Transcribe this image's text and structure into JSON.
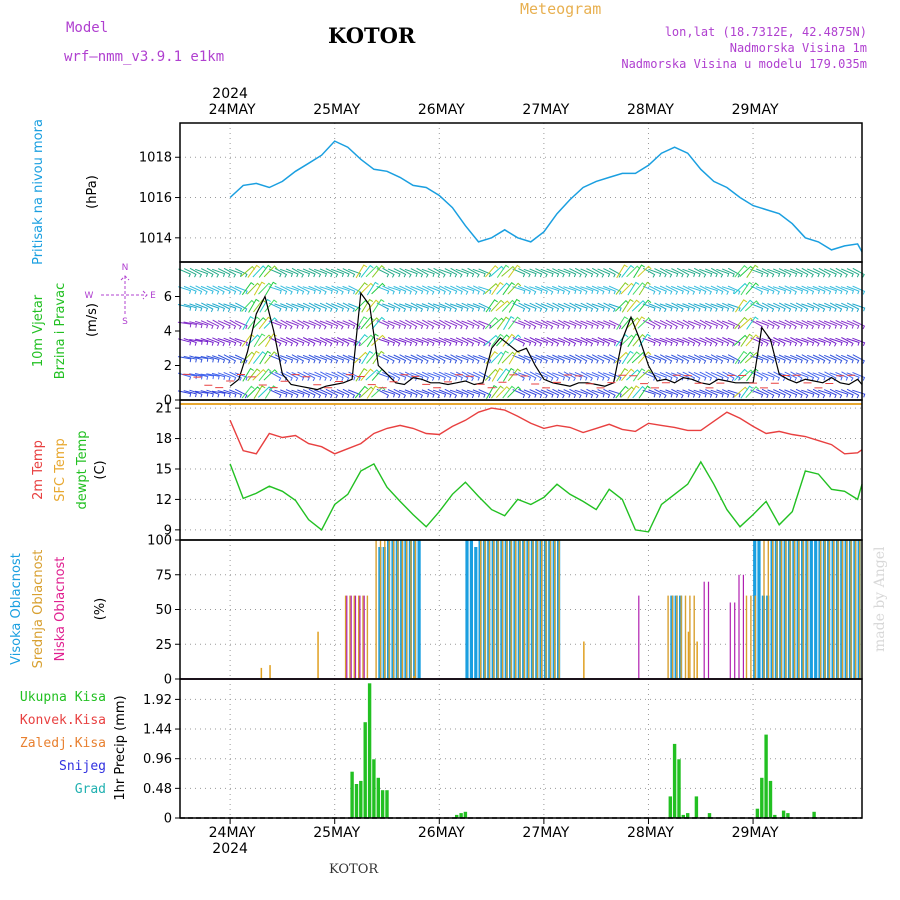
{
  "header": {
    "model_label": "Model",
    "model_name": "wrf—nmm_v3.9.1 e1km",
    "title": "KOTOR",
    "meteogram": "Meteogram",
    "lonlat": "lon,lat (18.7312E, 42.4875N)",
    "elev": "Nadmorska Visina 1m",
    "elev_model": "Nadmorska Visina u modelu 179.035m",
    "footer": "KOTOR",
    "watermark": "made by Angel"
  },
  "colors": {
    "pressure": "#1a9fe0",
    "temp2m": "#e84040",
    "sfc": "#e8a830",
    "dewpt": "#22c022",
    "high_cloud": "#1a9fe0",
    "mid_cloud": "#d8a030",
    "low_cloud": "#b020b0",
    "precip_total": "#22c022",
    "purple_text": "#b040d0",
    "gold_text": "#e8b050"
  },
  "chart_data": [
    {
      "type": "line",
      "panel": "pressure",
      "ylabel_rotated": "Pritisak na nivou mora",
      "unit": "(hPa)",
      "x_ticks": [
        "24MAY",
        "25MAY",
        "26MAY",
        "27MAY",
        "28MAY",
        "29MAY"
      ],
      "year": "2024",
      "ylim": [
        1012.8,
        1019.7
      ],
      "yticks": [
        1014,
        1016,
        1018
      ],
      "x_hours": [
        0,
        3,
        6,
        9,
        12,
        15,
        18,
        21,
        24,
        27,
        30,
        33,
        36,
        39,
        42,
        45,
        48,
        51,
        54,
        57,
        60,
        63,
        66,
        69,
        72,
        75,
        78,
        81,
        84,
        87,
        90,
        93,
        96,
        99,
        102,
        105,
        108,
        111,
        114,
        117,
        120,
        123,
        126,
        129,
        132,
        135,
        138,
        141,
        144,
        145
      ],
      "values": [
        1016.0,
        1016.6,
        1016.7,
        1016.5,
        1016.8,
        1017.3,
        1017.7,
        1018.1,
        1018.8,
        1018.5,
        1017.9,
        1017.4,
        1017.3,
        1017.0,
        1016.6,
        1016.5,
        1016.1,
        1015.5,
        1014.6,
        1013.8,
        1014.0,
        1014.4,
        1014.0,
        1013.8,
        1014.3,
        1015.2,
        1015.9,
        1016.5,
        1016.8,
        1017.0,
        1017.2,
        1017.2,
        1017.6,
        1018.2,
        1018.5,
        1018.2,
        1017.4,
        1016.8,
        1016.5,
        1016.0,
        1015.6,
        1015.4,
        1015.2,
        1014.7,
        1014.0,
        1013.8,
        1013.4,
        1013.6,
        1013.7,
        1013.3
      ]
    },
    {
      "type": "line",
      "panel": "wind",
      "ylabel_rotated_1": "10m Vjetar",
      "ylabel_rotated_2": "Brzina i Pravac",
      "unit": "(m/s)",
      "compass": [
        "N",
        "E",
        "S",
        "W"
      ],
      "ylim": [
        0,
        8
      ],
      "yticks": [
        0,
        2,
        4,
        6
      ],
      "x_hours": [
        0,
        2,
        4,
        6,
        8,
        10,
        12,
        14,
        16,
        18,
        20,
        22,
        24,
        26,
        28,
        30,
        32,
        34,
        36,
        38,
        40,
        42,
        44,
        46,
        48,
        50,
        52,
        54,
        56,
        58,
        60,
        62,
        64,
        66,
        68,
        70,
        72,
        74,
        76,
        78,
        80,
        82,
        84,
        86,
        88,
        90,
        92,
        94,
        96,
        98,
        100,
        102,
        104,
        106,
        108,
        110,
        112,
        114,
        116,
        118,
        120,
        122,
        124,
        126,
        128,
        130,
        132,
        134,
        136,
        138,
        140,
        142,
        144,
        145
      ],
      "values": [
        0.8,
        1.2,
        2.8,
        5.0,
        6.0,
        4.0,
        1.5,
        0.9,
        0.8,
        0.7,
        0.6,
        0.8,
        0.9,
        1.0,
        1.2,
        6.2,
        5.5,
        2.0,
        1.5,
        1.0,
        0.9,
        1.3,
        1.2,
        1.0,
        1.0,
        0.9,
        1.0,
        1.1,
        0.9,
        1.0,
        3.0,
        3.6,
        3.2,
        2.8,
        3.0,
        2.0,
        1.2,
        1.0,
        0.9,
        0.8,
        1.0,
        1.0,
        0.9,
        0.8,
        1.0,
        3.5,
        4.8,
        3.5,
        2.0,
        1.1,
        1.2,
        1.0,
        1.3,
        1.2,
        1.0,
        0.9,
        1.2,
        1.1,
        1.0,
        1.0,
        1.0,
        4.2,
        3.5,
        1.5,
        1.2,
        1.0,
        1.2,
        1.1,
        1.0,
        1.3,
        1.0,
        0.9,
        1.2,
        0.9
      ]
    },
    {
      "type": "line",
      "panel": "temperature",
      "ylabel_rotated_1": "2m Temp",
      "ylabel_rotated_2": "SFC Temp",
      "ylabel_rotated_3": "dewpt Temp",
      "unit": "(C)",
      "ylim": [
        8,
        21.8
      ],
      "yticks": [
        9,
        12,
        15,
        18,
        21
      ],
      "x_hours": [
        0,
        3,
        6,
        9,
        12,
        15,
        18,
        21,
        24,
        27,
        30,
        33,
        36,
        39,
        42,
        45,
        48,
        51,
        54,
        57,
        60,
        63,
        66,
        69,
        72,
        75,
        78,
        81,
        84,
        87,
        90,
        93,
        96,
        99,
        102,
        105,
        108,
        111,
        114,
        117,
        120,
        123,
        126,
        129,
        132,
        135,
        138,
        141,
        144,
        145
      ],
      "sfc_value": 21.4,
      "temp2m": [
        19.8,
        16.8,
        16.5,
        18.5,
        18.1,
        18.3,
        17.5,
        17.2,
        16.5,
        17.0,
        17.5,
        18.5,
        19.0,
        19.3,
        19.0,
        18.5,
        18.4,
        19.2,
        19.8,
        20.6,
        21.0,
        20.8,
        20.2,
        19.5,
        19.0,
        19.3,
        19.1,
        18.6,
        19.0,
        19.4,
        18.9,
        18.7,
        19.5,
        19.3,
        19.1,
        18.8,
        18.8,
        19.7,
        20.6,
        20.0,
        19.2,
        18.5,
        18.7,
        18.4,
        18.2,
        17.8,
        17.4,
        16.5,
        16.6,
        16.9
      ],
      "dewpt": [
        15.5,
        12.1,
        12.6,
        13.3,
        12.8,
        11.9,
        10.0,
        9.0,
        11.5,
        12.5,
        14.8,
        15.5,
        13.2,
        11.8,
        10.5,
        9.3,
        10.8,
        12.5,
        13.7,
        12.3,
        11.0,
        10.4,
        12.0,
        11.5,
        12.2,
        13.5,
        12.5,
        11.8,
        11.0,
        13.0,
        12.0,
        9.0,
        8.8,
        11.5,
        12.5,
        13.5,
        15.7,
        13.5,
        11.0,
        9.3,
        10.5,
        11.8,
        9.5,
        10.8,
        14.8,
        14.5,
        13.0,
        12.8,
        12.0,
        13.5
      ]
    },
    {
      "type": "bar",
      "panel": "clouds",
      "ylabel_rotated_1": "Visoka Oblacnost",
      "ylabel_rotated_2": "Srednja Oblacnost",
      "ylabel_rotated_3": "Niska Oblacnost",
      "unit": "(%)",
      "ylim": [
        0,
        100
      ],
      "yticks": [
        0,
        25,
        50,
        75,
        100
      ],
      "high_ranges": [
        [
          34,
          36,
          95
        ],
        [
          36,
          44,
          100
        ],
        [
          54,
          56,
          100
        ],
        [
          56,
          57,
          95
        ],
        [
          57,
          76,
          100
        ],
        [
          101,
          104,
          60
        ],
        [
          120,
          122,
          100
        ],
        [
          122,
          124,
          60
        ],
        [
          124,
          145,
          100
        ]
      ],
      "mid_ranges": [
        [
          26,
          32,
          60
        ],
        [
          33,
          37,
          100
        ],
        [
          37,
          43,
          100
        ],
        [
          57,
          76,
          100
        ],
        [
          100,
          107,
          60
        ],
        [
          118,
          121,
          60
        ],
        [
          122,
          128,
          100
        ],
        [
          128,
          133,
          100
        ],
        [
          135,
          145,
          100
        ]
      ],
      "low_ranges": [
        [
          26,
          31,
          60
        ],
        [
          93,
          94,
          60
        ],
        [
          108,
          110,
          70
        ],
        [
          114,
          116,
          55
        ],
        [
          116,
          118,
          75
        ]
      ],
      "spikes": [
        [
          7,
          8
        ],
        [
          9,
          10
        ],
        [
          20,
          34
        ],
        [
          42,
          2
        ],
        [
          81,
          27
        ],
        [
          105,
          34
        ],
        [
          107,
          27
        ]
      ]
    },
    {
      "type": "bar",
      "panel": "precip",
      "ylabel": "1hr Precip (mm)",
      "legend": [
        "Ukupna Kisa",
        "Konvek.Kisa",
        "Zaledj.Kisa",
        "Snijeg",
        "Grad"
      ],
      "legend_colors": [
        "#22c022",
        "#e84040",
        "#e88030",
        "#3030e0",
        "#20b0b0"
      ],
      "ylim": [
        0,
        2.25
      ],
      "yticks": [
        "0",
        "0.48",
        "0.96",
        "1.44",
        "1.92"
      ],
      "x": [
        28,
        29,
        30,
        31,
        32,
        33,
        34,
        35,
        36,
        52,
        53,
        54,
        101,
        102,
        103,
        104,
        105,
        107,
        110,
        121,
        122,
        123,
        124,
        125,
        127,
        128,
        134
      ],
      "values": [
        0.75,
        0.55,
        0.6,
        1.55,
        2.18,
        0.95,
        0.65,
        0.45,
        0.45,
        0.05,
        0.08,
        0.1,
        0.35,
        1.2,
        0.95,
        0.05,
        0.08,
        0.35,
        0.08,
        0.15,
        0.65,
        1.35,
        0.6,
        0.05,
        0.12,
        0.08,
        0.1
      ]
    }
  ]
}
